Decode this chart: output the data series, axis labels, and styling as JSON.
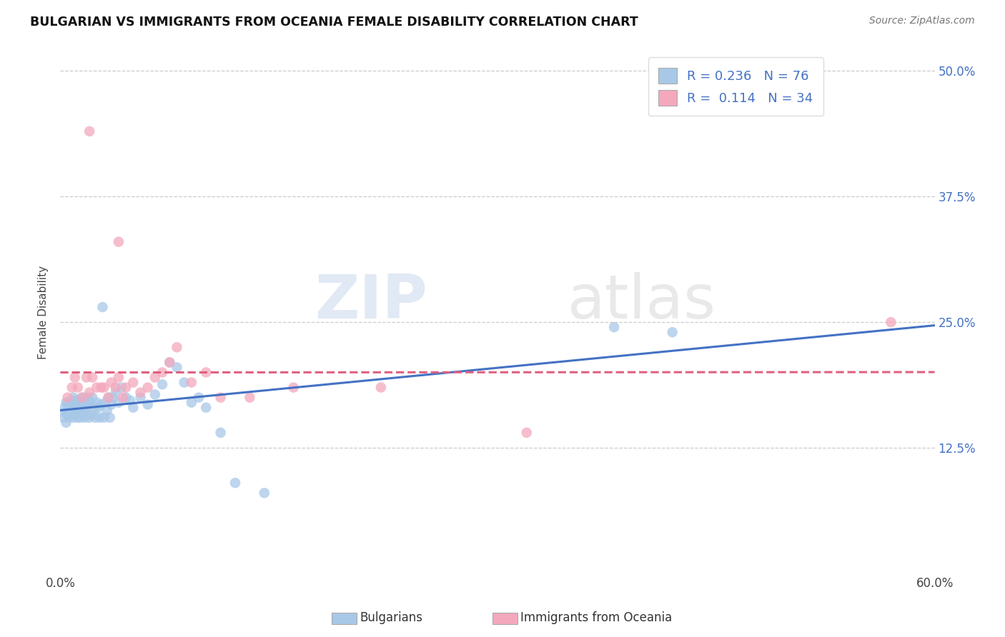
{
  "title": "BULGARIAN VS IMMIGRANTS FROM OCEANIA FEMALE DISABILITY CORRELATION CHART",
  "source": "Source: ZipAtlas.com",
  "ylabel": "Female Disability",
  "legend_label_1": "Bulgarians",
  "legend_label_2": "Immigrants from Oceania",
  "r1": "0.236",
  "n1": "76",
  "r2": "0.114",
  "n2": "34",
  "color1": "#a8c8e8",
  "color2": "#f4a8bc",
  "line_color1": "#4472c4",
  "line_color2": "#e06080",
  "watermark_zip": "ZIP",
  "watermark_atlas": "atlas",
  "xlim": [
    0.0,
    0.6
  ],
  "ylim": [
    0.0,
    0.52
  ],
  "ytick_vals": [
    0.125,
    0.25,
    0.375,
    0.5
  ],
  "ytick_labels": [
    "12.5%",
    "25.0%",
    "37.5%",
    "50.0%"
  ],
  "bulgarians_x": [
    0.002,
    0.003,
    0.003,
    0.004,
    0.004,
    0.005,
    0.005,
    0.005,
    0.006,
    0.006,
    0.007,
    0.007,
    0.008,
    0.008,
    0.009,
    0.009,
    0.01,
    0.01,
    0.01,
    0.011,
    0.011,
    0.012,
    0.012,
    0.013,
    0.013,
    0.014,
    0.014,
    0.015,
    0.015,
    0.016,
    0.016,
    0.017,
    0.017,
    0.018,
    0.018,
    0.019,
    0.02,
    0.02,
    0.021,
    0.021,
    0.022,
    0.023,
    0.024,
    0.025,
    0.026,
    0.027,
    0.028,
    0.029,
    0.03,
    0.031,
    0.032,
    0.033,
    0.034,
    0.035,
    0.036,
    0.038,
    0.04,
    0.042,
    0.045,
    0.048,
    0.05,
    0.055,
    0.06,
    0.065,
    0.07,
    0.075,
    0.08,
    0.085,
    0.09,
    0.095,
    0.1,
    0.11,
    0.12,
    0.14,
    0.38,
    0.42
  ],
  "bulgarians_y": [
    0.155,
    0.16,
    0.165,
    0.15,
    0.17,
    0.158,
    0.162,
    0.17,
    0.155,
    0.16,
    0.158,
    0.165,
    0.162,
    0.168,
    0.155,
    0.175,
    0.158,
    0.165,
    0.172,
    0.16,
    0.168,
    0.155,
    0.172,
    0.158,
    0.165,
    0.155,
    0.17,
    0.162,
    0.175,
    0.158,
    0.165,
    0.162,
    0.155,
    0.17,
    0.175,
    0.168,
    0.155,
    0.172,
    0.158,
    0.168,
    0.175,
    0.162,
    0.155,
    0.17,
    0.165,
    0.155,
    0.168,
    0.265,
    0.155,
    0.17,
    0.162,
    0.175,
    0.155,
    0.168,
    0.175,
    0.18,
    0.17,
    0.185,
    0.175,
    0.172,
    0.165,
    0.175,
    0.168,
    0.178,
    0.188,
    0.21,
    0.205,
    0.19,
    0.17,
    0.175,
    0.165,
    0.14,
    0.09,
    0.08,
    0.245,
    0.24
  ],
  "oceania_x": [
    0.005,
    0.008,
    0.01,
    0.012,
    0.015,
    0.018,
    0.02,
    0.022,
    0.025,
    0.028,
    0.03,
    0.033,
    0.035,
    0.038,
    0.04,
    0.043,
    0.045,
    0.05,
    0.055,
    0.06,
    0.065,
    0.07,
    0.075,
    0.08,
    0.09,
    0.1,
    0.11,
    0.13,
    0.16,
    0.22,
    0.02,
    0.04,
    0.32,
    0.57
  ],
  "oceania_y": [
    0.175,
    0.185,
    0.195,
    0.185,
    0.175,
    0.195,
    0.18,
    0.195,
    0.185,
    0.185,
    0.185,
    0.175,
    0.19,
    0.185,
    0.195,
    0.175,
    0.185,
    0.19,
    0.18,
    0.185,
    0.195,
    0.2,
    0.21,
    0.225,
    0.19,
    0.2,
    0.175,
    0.175,
    0.185,
    0.185,
    0.44,
    0.33,
    0.14,
    0.25
  ]
}
